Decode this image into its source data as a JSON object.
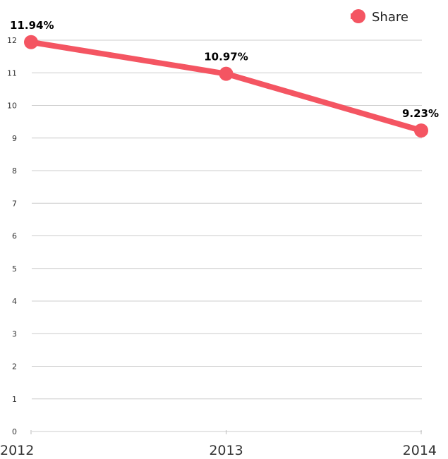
{
  "chart_data": {
    "type": "line",
    "categories": [
      "2012",
      "2013",
      "2014"
    ],
    "series": [
      {
        "name": "Share",
        "values": [
          11.94,
          10.97,
          9.23
        ],
        "labels": [
          "11.94%",
          "10.97%",
          "9.23%"
        ],
        "color": "#f45562"
      }
    ],
    "yticks": [
      "0",
      "1",
      "2",
      "3",
      "4",
      "5",
      "6",
      "7",
      "8",
      "9",
      "10",
      "11",
      "12"
    ],
    "ylim": [
      0,
      12
    ],
    "grid": true,
    "legend": {
      "position": "top-right",
      "label": "Share"
    },
    "gridColor": "#cccccc",
    "title": "",
    "xlabel": "",
    "ylabel": ""
  }
}
